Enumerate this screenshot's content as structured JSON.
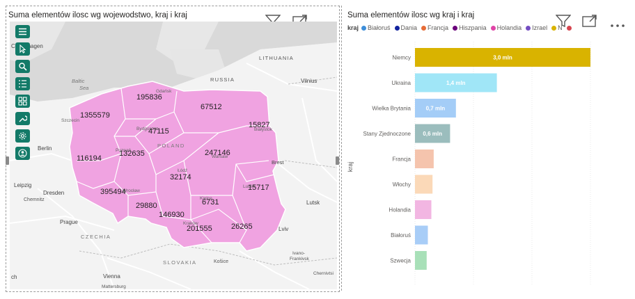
{
  "map_visual": {
    "title": "Suma elementów ilosc wg wojewodstwo, kraj i kraj",
    "toolbar": [
      "menu-icon",
      "select-icon",
      "search-icon",
      "list-icon",
      "grid-icon",
      "wrench-icon",
      "settings-icon",
      "user-icon"
    ],
    "basemap_labels": [
      {
        "text": "Copenhagen"
      },
      {
        "text": "LITHUANIA"
      },
      {
        "text": "Baltic"
      },
      {
        "text": "Sea"
      },
      {
        "text": "RUSSIA"
      },
      {
        "text": "Vilnius"
      },
      {
        "text": "Gdańsk"
      },
      {
        "text": "Szczecin"
      },
      {
        "text": "Bydgoszcz"
      },
      {
        "text": "Białystok"
      },
      {
        "text": "Berlin"
      },
      {
        "text": "POLAND"
      },
      {
        "text": "Poznań"
      },
      {
        "text": "Warsaw"
      },
      {
        "text": "Brest"
      },
      {
        "text": "Łódź"
      },
      {
        "text": "Leipzig"
      },
      {
        "text": "Dresden"
      },
      {
        "text": "Wrocław"
      },
      {
        "text": "Lublin"
      },
      {
        "text": "Chemnitz"
      },
      {
        "text": "Lutsk"
      },
      {
        "text": "Kielce"
      },
      {
        "text": "Prague"
      },
      {
        "text": "Kraków"
      },
      {
        "text": "Lviv"
      },
      {
        "text": "CZECHIA"
      },
      {
        "text": "Ivano-"
      },
      {
        "text": "Frankivsk"
      },
      {
        "text": "SLOVAKIA"
      },
      {
        "text": "Košice"
      },
      {
        "text": "Vienna"
      },
      {
        "text": "Chernivtsi"
      },
      {
        "text": "Mattersburg"
      },
      {
        "text": "ch"
      }
    ],
    "regions": [
      {
        "value": "195836"
      },
      {
        "value": "67512"
      },
      {
        "value": "1355579"
      },
      {
        "value": "47115"
      },
      {
        "value": "15827"
      },
      {
        "value": "116194"
      },
      {
        "value": "132635"
      },
      {
        "value": "247146"
      },
      {
        "value": "32174"
      },
      {
        "value": "15717"
      },
      {
        "value": "395494"
      },
      {
        "value": "6731"
      },
      {
        "value": "29880"
      },
      {
        "value": "146930"
      },
      {
        "value": "201555"
      },
      {
        "value": "26265"
      }
    ],
    "fill_color": "#f0a3e1"
  },
  "bar_visual": {
    "title": "Suma elementów ilosc wg kraj i kraj",
    "legend_title": "kraj",
    "legend": [
      {
        "name": "Białoruś",
        "color": "#3e8ed9"
      },
      {
        "name": "Dania",
        "color": "#12239e"
      },
      {
        "name": "Francja",
        "color": "#e66c37"
      },
      {
        "name": "Hiszpania",
        "color": "#6b007b"
      },
      {
        "name": "Holandia",
        "color": "#e044a7"
      },
      {
        "name": "Izrael",
        "color": "#744ec2"
      },
      {
        "name": "N",
        "color": "#d9b300"
      },
      {
        "name": "",
        "color": "#d64550"
      }
    ]
  },
  "chart_data": {
    "type": "bar",
    "orientation": "horizontal",
    "title": "Suma elementów ilosc wg kraj i kraj",
    "ylabel": "kraj",
    "xlabel": "",
    "categories": [
      "Niemcy",
      "Ukraina",
      "Wielka Brytania",
      "Stany Zjednoczone",
      "Francja",
      "Włochy",
      "Holandia",
      "Białoruś",
      "Szwecja"
    ],
    "values": [
      3.0,
      1.4,
      0.7,
      0.6,
      0.32,
      0.3,
      0.28,
      0.22,
      0.2
    ],
    "data_labels": [
      "3,0 mln",
      "1,4 mln",
      "0,7 mln",
      "0,6 mln",
      "",
      "",
      "",
      "",
      ""
    ],
    "colors": [
      "#d9b300",
      "#a0e6f7",
      "#a4cdf7",
      "#9bbdbd",
      "#f5c4ad",
      "#fbd9b8",
      "#f2b6e2",
      "#a8cdf7",
      "#a8e0b8"
    ],
    "xlim": [
      0,
      3.0
    ],
    "grid": true,
    "legend_position": "top-left"
  }
}
